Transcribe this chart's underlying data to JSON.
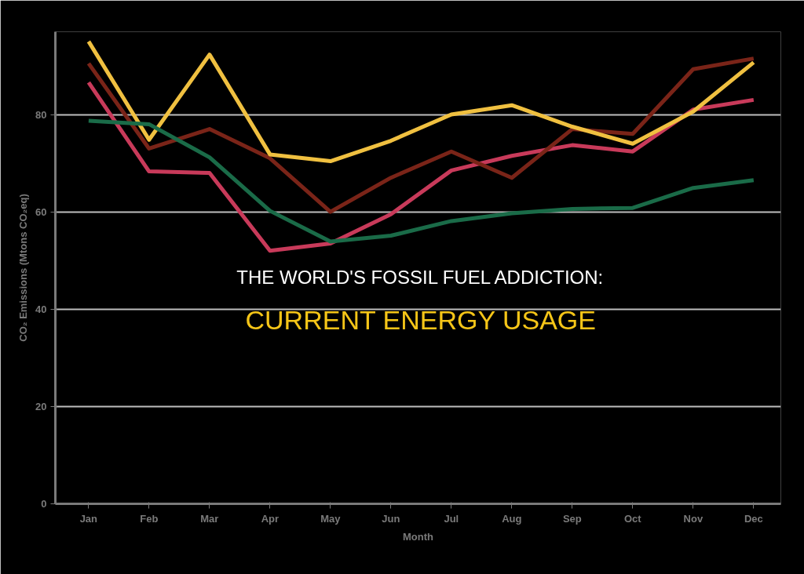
{
  "chart_data": {
    "type": "line",
    "title": "THE WORLD'S FOSSIL FUEL ADDICTION:",
    "subtitle": "CURRENT ENERGY USAGE",
    "xlabel": "Month",
    "ylabel": "CO₂ Emissions (Mtons CO₂eq)",
    "categories": [
      "Jan",
      "Feb",
      "Mar",
      "Apr",
      "May",
      "Jun",
      "Jul",
      "Aug",
      "Sep",
      "Oct",
      "Nov",
      "Dec"
    ],
    "series": [
      {
        "color": "#c83a5a",
        "values": [
          86.6,
          68.3,
          68.0,
          52,
          53.5,
          59.5,
          68.5,
          71.5,
          73.7,
          72.4,
          81,
          83
        ]
      },
      {
        "color": "#7a2418",
        "values": [
          90.5,
          73,
          77,
          71,
          60,
          67,
          72.4,
          67,
          77,
          76,
          89.3,
          91.5
        ]
      },
      {
        "color": "#f0c040",
        "values": [
          95,
          74.8,
          92.3,
          71.8,
          70.4,
          74.6,
          80,
          81.9,
          77.5,
          74,
          80.6,
          90.7
        ]
      },
      {
        "color": "#1a6b48",
        "values": [
          78.7,
          78,
          71.2,
          60.2,
          53.9,
          55.1,
          58.1,
          59.7,
          60.6,
          60.8,
          64.9,
          66.5
        ]
      }
    ],
    "ylim": [
      0,
      97
    ],
    "yticks": [
      0,
      20,
      40,
      60,
      80
    ],
    "grid": "y",
    "line_style": "solid"
  }
}
